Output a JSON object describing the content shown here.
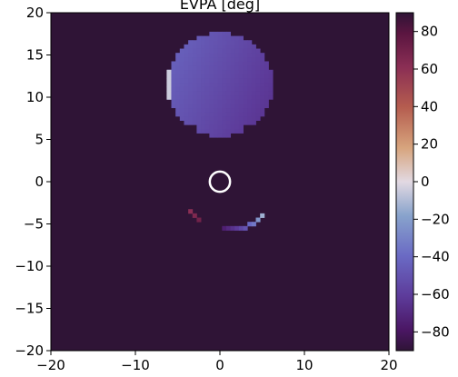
{
  "chart_data": {
    "type": "heatmap",
    "title": "EVPA [deg]",
    "xlabel": "",
    "ylabel": "",
    "xlim": [
      -20,
      20
    ],
    "ylim": [
      -20,
      20
    ],
    "grid": false,
    "x_ticks": [
      -20,
      -10,
      0,
      10,
      20
    ],
    "y_ticks": [
      -20,
      -15,
      -10,
      -5,
      0,
      5,
      10,
      15,
      20
    ],
    "x_tick_labels": [
      "−20",
      "−10",
      "0",
      "10",
      "20"
    ],
    "y_tick_labels": [
      "−20",
      "−15",
      "−10",
      "−5",
      "0",
      "5",
      "10",
      "15",
      "20"
    ],
    "colorbar": {
      "colormap": "twilight_shifted",
      "range": [
        -90,
        90
      ],
      "ticks": [
        -80,
        -60,
        -40,
        -20,
        0,
        20,
        40,
        60,
        80
      ],
      "tick_labels": [
        "−80",
        "−60",
        "−40",
        "−20",
        "0",
        "20",
        "40",
        "60",
        "80"
      ]
    },
    "background_value": -90,
    "regions": [
      {
        "name": "main lobe",
        "shape": "disc",
        "center": [
          0,
          11.5
        ],
        "radius": 6.3,
        "values_deg": {
          "left_edge": -45,
          "right_edge": -62
        },
        "edge_pixels_deg": -5
      },
      {
        "name": "lower arc",
        "cells": [
          {
            "x": -3.5,
            "y": -3.5,
            "value": 60
          },
          {
            "x": -3.0,
            "y": -4.0,
            "value": 65
          },
          {
            "x": -2.5,
            "y": -4.5,
            "value": 70
          },
          {
            "x": 0.5,
            "y": -5.5,
            "value": -75
          },
          {
            "x": 1.0,
            "y": -5.5,
            "value": -70
          },
          {
            "x": 1.5,
            "y": -5.5,
            "value": -65
          },
          {
            "x": 2.0,
            "y": -5.5,
            "value": -60
          },
          {
            "x": 2.5,
            "y": -5.5,
            "value": -55
          },
          {
            "x": 3.0,
            "y": -5.5,
            "value": -50
          },
          {
            "x": 3.5,
            "y": -5.0,
            "value": -40
          },
          {
            "x": 4.0,
            "y": -5.0,
            "value": -35
          },
          {
            "x": 4.5,
            "y": -4.5,
            "value": -25
          },
          {
            "x": 5.0,
            "y": -4.0,
            "value": -15
          }
        ]
      }
    ],
    "marker": {
      "shape": "circle",
      "x": 0,
      "y": 0,
      "radius": 1.2,
      "color": "#ffffff"
    }
  }
}
